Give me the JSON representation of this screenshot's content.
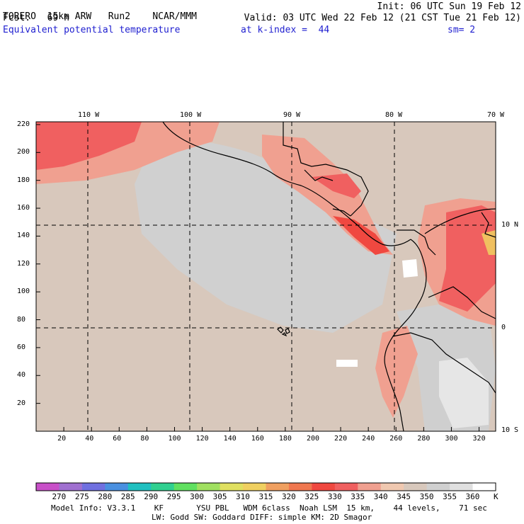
{
  "header": {
    "model": "TORERO",
    "resolution": "15km ARW",
    "run": "Run2",
    "org": "NCAR/MMM",
    "init": "Init: 06 UTC Sun 19 Feb 12",
    "fcst_label": "Fcst.",
    "fcst_value": "69 h",
    "valid": "Valid: 03 UTC Wed 22 Feb 12 (21 CST Tue 21 Feb 12)",
    "field": "Equivalent potential temperature",
    "level": "at k-index =",
    "k_index": "44",
    "smooth": "sm= 2"
  },
  "map": {
    "lon_labels": [
      "110 W",
      "100 W",
      "90 W",
      "80 W",
      "70 W"
    ],
    "lat_labels": [
      "10 N",
      "0",
      "10 S"
    ],
    "y_ticks": [
      "220",
      "200",
      "180",
      "160",
      "140",
      "120",
      "100",
      "80",
      "60",
      "40",
      "20"
    ],
    "x_ticks": [
      "20",
      "40",
      "60",
      "80",
      "100",
      "120",
      "140",
      "160",
      "180",
      "200",
      "220",
      "240",
      "260",
      "280",
      "300",
      "320"
    ],
    "x_range": [
      0,
      332
    ],
    "y_range": [
      0,
      222
    ]
  },
  "colorbar": {
    "labels": [
      "270",
      "275",
      "280",
      "285",
      "290",
      "295",
      "300",
      "305",
      "310",
      "315",
      "320",
      "325",
      "330",
      "335",
      "340",
      "345",
      "350",
      "355",
      "360"
    ],
    "unit": "K",
    "colors": [
      "#c850c8",
      "#a070d0",
      "#7070e0",
      "#4a90e0",
      "#20c0c0",
      "#30d090",
      "#60e060",
      "#a0e060",
      "#e0e060",
      "#f0d060",
      "#f0a060",
      "#f07850",
      "#f04840",
      "#f06060",
      "#f0a090",
      "#f0c8b0",
      "#d8c8bc",
      "#d0d0d0",
      "#e0e0e0",
      "#ffffff"
    ]
  },
  "footer": {
    "line1": "Model Info: V3.3.1    KF       YSU PBL   WDM 6class  Noah LSM  15 km,    44 levels,    71 sec",
    "line2": "LW: Godd SW: Goddard DIFF: simple KM: 2D Smagor"
  }
}
